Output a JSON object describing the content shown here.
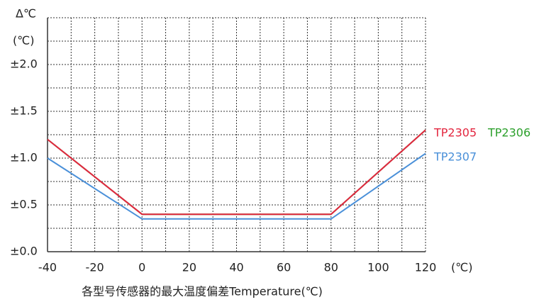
{
  "chart_data": {
    "type": "line",
    "title": "各型号传感器的最大温度偏差Temperature(℃)",
    "y_label_top": "Δ℃",
    "y_label": "(℃)",
    "x_label": "(℃)",
    "x": [
      -40,
      0,
      80,
      120
    ],
    "series": [
      {
        "name": "TP2306",
        "color": "#2ca02c",
        "values": [
          1.2,
          0.4,
          0.4,
          1.3
        ]
      },
      {
        "name": "TP2305",
        "color": "#e3263f",
        "values": [
          1.2,
          0.4,
          0.4,
          1.3
        ]
      },
      {
        "name": "TP2307",
        "color": "#4a90d9",
        "values": [
          1.0,
          0.35,
          0.35,
          1.05
        ]
      }
    ],
    "xlim": [
      -40,
      120
    ],
    "xticks": [
      -40,
      -20,
      0,
      20,
      40,
      60,
      80,
      100,
      120
    ],
    "ylim": [
      0,
      2.5
    ],
    "yticks": [
      {
        "value": 0,
        "label": "±0.0"
      },
      {
        "value": 0.5,
        "label": "±0.5"
      },
      {
        "value": 1.0,
        "label": "±1.0"
      },
      {
        "value": 1.5,
        "label": "±1.5"
      },
      {
        "value": 2.0,
        "label": "±2.0"
      }
    ],
    "grid": true
  }
}
